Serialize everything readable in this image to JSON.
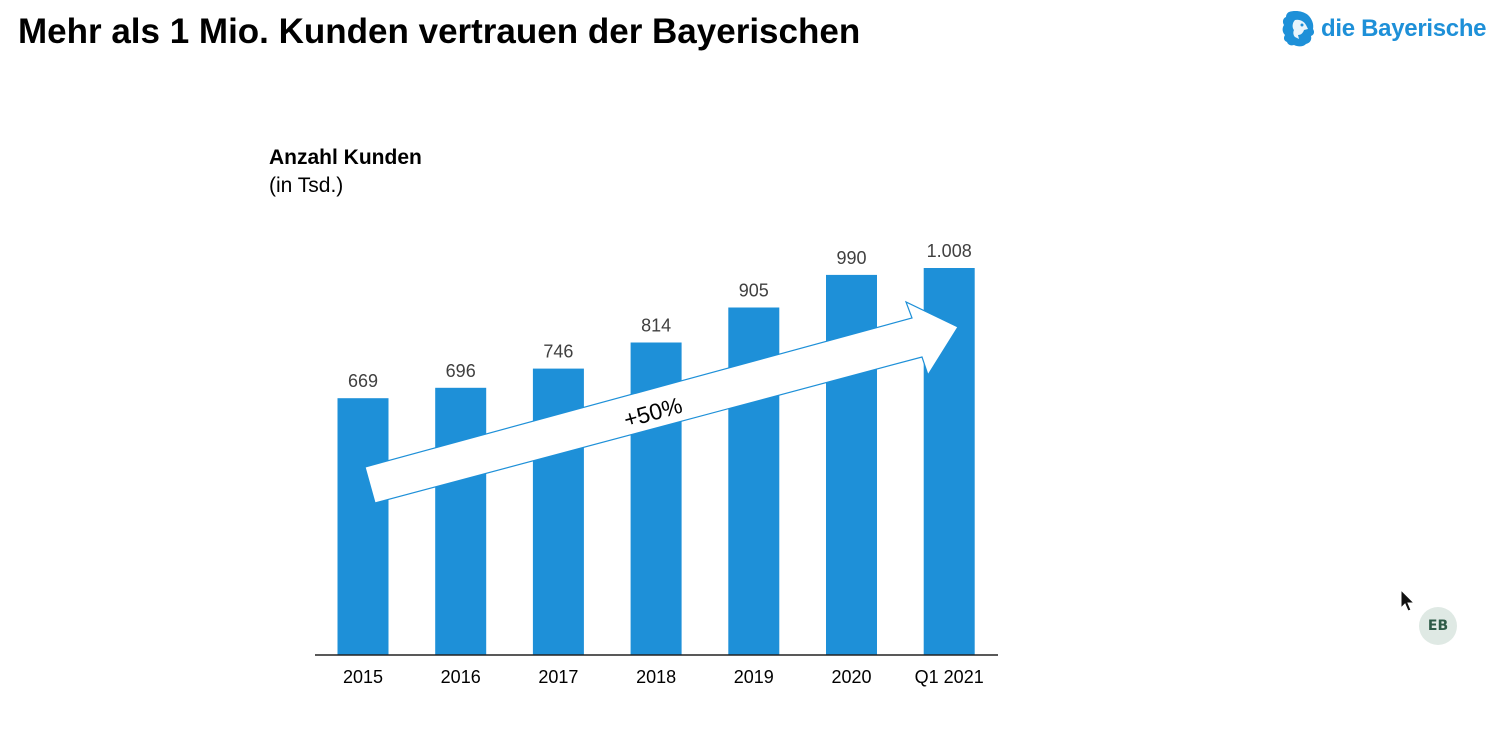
{
  "slide": {
    "title": "Mehr als 1 Mio. Kunden vertrauen der Bayerischen"
  },
  "logo": {
    "text": "die Bayerische",
    "icon": "lion-head-icon",
    "color": "#1e90d8"
  },
  "chart_heading": {
    "title": "Anzahl Kunden",
    "unit": "(in Tsd.)"
  },
  "chart_data": {
    "type": "bar",
    "title": "Anzahl Kunden",
    "subtitle": "(in Tsd.)",
    "categories": [
      "2015",
      "2016",
      "2017",
      "2018",
      "2019",
      "2020",
      "Q1 2021"
    ],
    "values": [
      669,
      696,
      746,
      814,
      905,
      990,
      1008
    ],
    "data_labels": [
      "669",
      "696",
      "746",
      "814",
      "905",
      "990",
      "1.008"
    ],
    "bar_color": "#1e90d8",
    "ylim": [
      0,
      1008
    ],
    "grid": false,
    "annotation": {
      "text": "+50%",
      "shape": "arrow",
      "from_category": "2015",
      "to_category": "Q1 2021"
    }
  },
  "presenter": {
    "initials": "EB"
  }
}
